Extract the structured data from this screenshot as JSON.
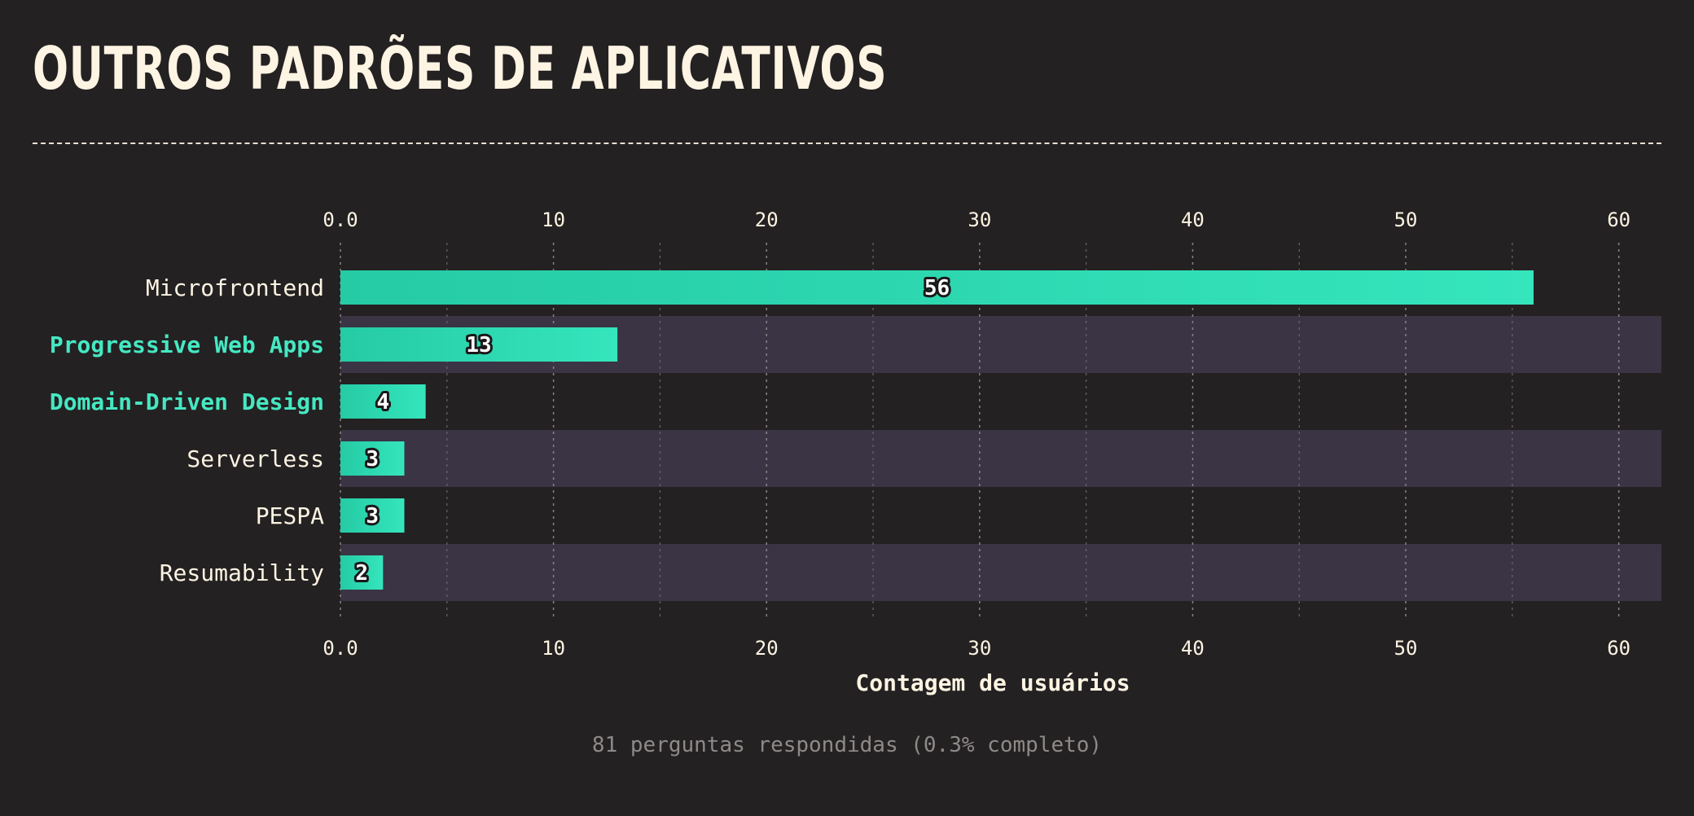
{
  "title": "OUTROS PADRÕES DE APLICATIVOS",
  "footer_text": "81 perguntas respondidas (0.3% completo)",
  "colors": {
    "background": "#242122",
    "band": "#3a3444",
    "bar_start": "#25cba5",
    "bar_end": "#35e5bc",
    "text": "#fdf4e3",
    "highlight": "#45e8c2",
    "muted": "#8e8a88"
  },
  "chart_data": {
    "type": "bar",
    "orientation": "horizontal",
    "categories": [
      "Microfrontend",
      "Progressive Web Apps",
      "Domain-Driven Design",
      "Serverless",
      "PESPA",
      "Resumability"
    ],
    "values": [
      56,
      13,
      4,
      3,
      3,
      2
    ],
    "highlighted_categories": [
      "Progressive Web Apps",
      "Domain-Driven Design"
    ],
    "xlabel": "Contagem de usuários",
    "ylabel": "",
    "xlim": [
      0,
      62
    ],
    "x_ticks": [
      "0.0",
      "10",
      "20",
      "30",
      "40",
      "50",
      "60"
    ],
    "tick_values": [
      0,
      10,
      20,
      30,
      40,
      50,
      60
    ],
    "minor_gridlines": [
      5,
      15,
      25,
      35,
      45,
      55
    ],
    "grid": true,
    "axis_ticks_top_and_bottom": true,
    "data_labels": true
  }
}
